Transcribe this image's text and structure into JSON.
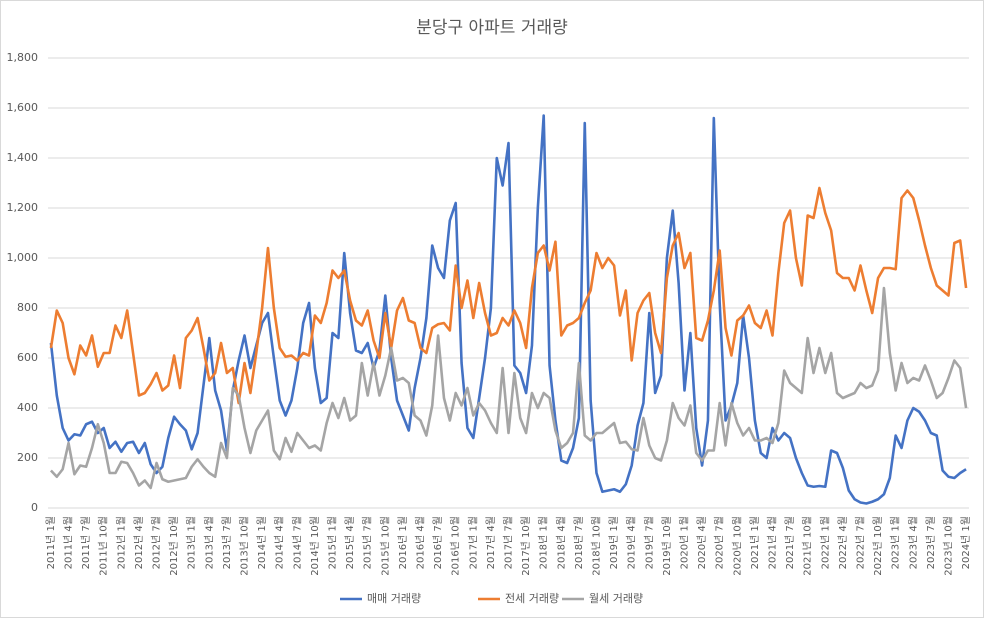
{
  "chart_data": {
    "type": "line",
    "title": "분당구 아파트 거래량",
    "categories": [
      "2011년 1월",
      null,
      null,
      "2011년 4월",
      null,
      null,
      "2011년 7월",
      null,
      null,
      "2011년 10월",
      null,
      null,
      "2012년 1월",
      null,
      null,
      "2012년 4월",
      null,
      null,
      "2012년 7월",
      null,
      null,
      "2012년 10월",
      null,
      null,
      "2013년 1월",
      null,
      null,
      "2013년 4월",
      null,
      null,
      "2013년 7월",
      null,
      null,
      "2013년 10월",
      null,
      null,
      "2014년 1월",
      null,
      null,
      "2014년 4월",
      null,
      null,
      "2014년 7월",
      null,
      null,
      "2014년 10월",
      null,
      null,
      "2015년 1월",
      null,
      null,
      "2015년 4월",
      null,
      null,
      "2015년 7월",
      null,
      null,
      "2015년 10월",
      null,
      null,
      "2016년 1월",
      null,
      null,
      "2016년 4월",
      null,
      null,
      "2016년 7월",
      null,
      null,
      "2016년 10월",
      null,
      null,
      "2017년 1월",
      null,
      null,
      "2017년 4월",
      null,
      null,
      "2017년 7월",
      null,
      null,
      "2017년 10월",
      null,
      null,
      "2018년 1월",
      null,
      null,
      "2018년 4월",
      null,
      null,
      "2018년 7월",
      null,
      null,
      "2018년 10월",
      null,
      null,
      "2019년 1월",
      null,
      null,
      "2019년 4월",
      null,
      null,
      "2019년 7월",
      null,
      null,
      "2019년 10월",
      null,
      null,
      "2020년 1월",
      null,
      null,
      "2020년 4월",
      null,
      null,
      "2020년 7월",
      null,
      null,
      "2020년 10월",
      null,
      null,
      "2021년 1월",
      null,
      null,
      "2021년 4월",
      null,
      null,
      "2021년 7월",
      null,
      null,
      "2021년 10월",
      null,
      null,
      "2022년 1월",
      null,
      null,
      "2022년 4월",
      null,
      null,
      "2022년 7월",
      null,
      null,
      "2022년 10월",
      null,
      null,
      "2023년 1월",
      null,
      null,
      "2023년 4월",
      null,
      null,
      "2023년 7월",
      null,
      null,
      "2023년 10월",
      null,
      null,
      "2024년 1월"
    ],
    "series": [
      {
        "name": "매매 거래량",
        "color": "#4472c4",
        "values": [
          660,
          450,
          320,
          270,
          295,
          290,
          335,
          345,
          300,
          320,
          240,
          265,
          225,
          260,
          265,
          220,
          260,
          175,
          140,
          165,
          280,
          365,
          335,
          310,
          235,
          300,
          490,
          680,
          470,
          390,
          230,
          470,
          590,
          690,
          560,
          650,
          740,
          780,
          600,
          430,
          370,
          430,
          560,
          740,
          820,
          560,
          420,
          440,
          700,
          680,
          1020,
          780,
          630,
          620,
          660,
          560,
          630,
          850,
          600,
          430,
          370,
          310,
          480,
          600,
          760,
          1050,
          960,
          920,
          1150,
          1220,
          580,
          320,
          280,
          440,
          600,
          800,
          1400,
          1290,
          1460,
          570,
          540,
          460,
          650,
          1200,
          1570,
          570,
          350,
          190,
          180,
          240,
          360,
          1540,
          430,
          140,
          65,
          70,
          75,
          65,
          95,
          170,
          330,
          420,
          780,
          460,
          530,
          1000,
          1190,
          900,
          470,
          700,
          320,
          170,
          350,
          1560,
          820,
          350,
          410,
          500,
          770,
          600,
          350,
          220,
          200,
          320,
          270,
          300,
          280,
          200,
          140,
          90,
          85,
          88,
          85,
          230,
          220,
          160,
          70,
          35,
          22,
          18,
          25,
          35,
          55,
          120,
          290,
          240,
          350,
          400,
          385,
          350,
          300,
          290,
          150,
          125,
          120,
          140,
          155
        ]
      },
      {
        "name": "전세 거래량",
        "color": "#ed7d31",
        "values": [
          640,
          790,
          740,
          600,
          535,
          650,
          610,
          690,
          565,
          620,
          620,
          730,
          680,
          790,
          620,
          450,
          460,
          495,
          540,
          470,
          490,
          610,
          480,
          680,
          710,
          760,
          640,
          510,
          540,
          660,
          540,
          560,
          420,
          580,
          460,
          620,
          800,
          1040,
          800,
          640,
          605,
          610,
          590,
          620,
          610,
          770,
          740,
          820,
          950,
          920,
          950,
          830,
          750,
          730,
          790,
          670,
          600,
          780,
          640,
          790,
          840,
          750,
          740,
          640,
          620,
          720,
          735,
          740,
          710,
          970,
          800,
          910,
          760,
          900,
          780,
          690,
          700,
          760,
          730,
          790,
          740,
          640,
          880,
          1020,
          1050,
          950,
          1065,
          690,
          730,
          740,
          760,
          820,
          870,
          1020,
          960,
          1000,
          970,
          770,
          870,
          590,
          780,
          830,
          860,
          700,
          620,
          920,
          1050,
          1100,
          960,
          1020,
          680,
          670,
          750,
          870,
          1030,
          720,
          610,
          750,
          770,
          810,
          740,
          720,
          790,
          690,
          940,
          1140,
          1190,
          1000,
          890,
          1170,
          1160,
          1280,
          1180,
          1110,
          940,
          920,
          920,
          870,
          970,
          870,
          780,
          920,
          960,
          960,
          955,
          1240,
          1270,
          1240,
          1150,
          1050,
          960,
          890,
          870,
          850,
          1060,
          1070,
          880
        ]
      },
      {
        "name": "월세 거래량",
        "color": "#a5a5a5",
        "values": [
          150,
          125,
          155,
          260,
          135,
          170,
          165,
          240,
          335,
          260,
          140,
          140,
          185,
          180,
          140,
          90,
          110,
          80,
          180,
          115,
          105,
          110,
          115,
          120,
          165,
          195,
          165,
          140,
          125,
          260,
          200,
          480,
          450,
          320,
          220,
          310,
          350,
          390,
          230,
          195,
          280,
          225,
          300,
          270,
          240,
          250,
          230,
          340,
          420,
          360,
          440,
          350,
          370,
          580,
          450,
          580,
          450,
          530,
          640,
          510,
          520,
          500,
          370,
          350,
          290,
          410,
          690,
          440,
          350,
          460,
          410,
          480,
          370,
          420,
          390,
          340,
          300,
          560,
          300,
          540,
          360,
          300,
          460,
          400,
          460,
          440,
          310,
          240,
          260,
          300,
          580,
          290,
          270,
          300,
          300,
          320,
          340,
          260,
          265,
          235,
          230,
          360,
          250,
          200,
          190,
          270,
          420,
          360,
          330,
          410,
          220,
          190,
          230,
          230,
          420,
          250,
          420,
          340,
          290,
          320,
          270,
          270,
          280,
          260,
          340,
          550,
          500,
          480,
          460,
          680,
          540,
          640,
          540,
          620,
          460,
          440,
          450,
          460,
          500,
          480,
          490,
          550,
          880,
          620,
          470,
          580,
          500,
          520,
          510,
          570,
          510,
          440,
          460,
          520,
          590,
          560,
          400
        ]
      }
    ],
    "ylim": [
      0,
      1800
    ],
    "yticks": [
      0,
      200,
      400,
      600,
      800,
      {
        "value": 1000,
        "label": "1,000"
      },
      {
        "value": 1200,
        "label": "1,200"
      },
      {
        "value": 1400,
        "label": "1,400"
      },
      {
        "value": 1600,
        "label": "1,600"
      },
      {
        "value": 1800,
        "label": "1,800"
      }
    ],
    "grid": true,
    "legend": "bottom"
  }
}
